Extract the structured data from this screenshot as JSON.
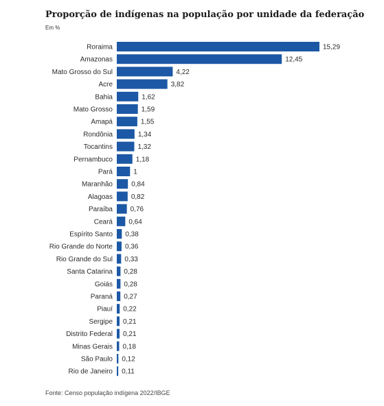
{
  "chart_data": {
    "type": "bar",
    "orientation": "horizontal",
    "title": "Proporção de indígenas na população por unidade da federação",
    "unit": "Em %",
    "source": "Fonte: Censo população indígena 2022/IBGE",
    "color": "#1c58a5",
    "categories": [
      "Roraima",
      "Amazonas",
      "Mato Grosso do Sul",
      "Acre",
      "Bahia",
      "Mato Grosso",
      "Amapá",
      "Rondônia",
      "Tocantins",
      "Pernambuco",
      "Pará",
      "Maranhão",
      "Alagoas",
      "Paraíba",
      "Ceará",
      "Espírito Santo",
      "Rio Grande do Norte",
      "Rio Grande do Sul",
      "Santa Catarina",
      "Goiás",
      "Paraná",
      "Piauí",
      "Sergipe",
      "Distrito Federal",
      "Minas Gerais",
      "São Paulo",
      "Rio de Janeiro"
    ],
    "values": [
      15.29,
      12.45,
      4.22,
      3.82,
      1.62,
      1.59,
      1.55,
      1.34,
      1.32,
      1.18,
      1,
      0.84,
      0.82,
      0.76,
      0.64,
      0.38,
      0.36,
      0.33,
      0.28,
      0.28,
      0.27,
      0.22,
      0.21,
      0.21,
      0.18,
      0.12,
      0.11
    ],
    "value_labels": [
      "15,29",
      "12,45",
      "4,22",
      "3,82",
      "1,62",
      "1,59",
      "1,55",
      "1,34",
      "1,32",
      "1,18",
      "1",
      "0,84",
      "0,82",
      "0,76",
      "0,64",
      "0,38",
      "0,36",
      "0,33",
      "0,28",
      "0,28",
      "0,27",
      "0,22",
      "0,21",
      "0,21",
      "0,18",
      "0,12",
      "0,11"
    ],
    "xlim": [
      0,
      15.29
    ]
  }
}
